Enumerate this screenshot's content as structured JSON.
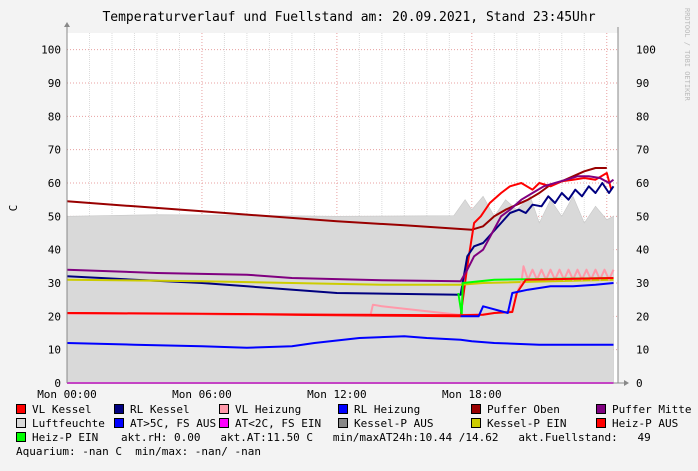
{
  "chart_data": {
    "type": "line",
    "title": "Temperaturverlauf und Fuellstand am: 20.09.2021, Stand 23:45Uhr",
    "ylabel": "C",
    "watermark": "RRDTOOL / TOBI OETIKER",
    "ylim": [
      0,
      105
    ],
    "xlim_hours": [
      0,
      24.5
    ],
    "y_ticks": [
      "0",
      "10",
      "20",
      "30",
      "40",
      "50",
      "60",
      "70",
      "80",
      "90",
      "100"
    ],
    "x_ticks": [
      {
        "label": "Mon 00:00",
        "hour": 0
      },
      {
        "label": "Mon 06:00",
        "hour": 6
      },
      {
        "label": "Mon 12:00",
        "hour": 12
      },
      {
        "label": "Mon 18:00",
        "hour": 18
      }
    ],
    "grid": true,
    "series": [
      {
        "name": "Luftfeuchte",
        "color": "#d9d9d9",
        "kind": "area",
        "points": [
          [
            0,
            50
          ],
          [
            4,
            50.5
          ],
          [
            8,
            50.3
          ],
          [
            12,
            50
          ],
          [
            17.2,
            50.2
          ],
          [
            17.7,
            55
          ],
          [
            18,
            52
          ],
          [
            18.5,
            56
          ],
          [
            19,
            50
          ],
          [
            19.5,
            55
          ],
          [
            20,
            52
          ],
          [
            20.6,
            56
          ],
          [
            21,
            48
          ],
          [
            21.5,
            55
          ],
          [
            22,
            50
          ],
          [
            22.5,
            56
          ],
          [
            23,
            48
          ],
          [
            23.5,
            53
          ],
          [
            24,
            49
          ],
          [
            24.3,
            50
          ]
        ]
      },
      {
        "name": "Puffer Oben",
        "color": "#990000",
        "points": [
          [
            0,
            54.5
          ],
          [
            3,
            53
          ],
          [
            6,
            51.5
          ],
          [
            9,
            50
          ],
          [
            12,
            48.5
          ],
          [
            15,
            47.3
          ],
          [
            18,
            46
          ],
          [
            18.5,
            47
          ],
          [
            19,
            50
          ],
          [
            19.5,
            52
          ],
          [
            20,
            53.5
          ],
          [
            20.5,
            55
          ],
          [
            21,
            57
          ],
          [
            21.5,
            59.5
          ],
          [
            22,
            60.5
          ],
          [
            22.5,
            62
          ],
          [
            23,
            63.5
          ],
          [
            23.5,
            64.5
          ],
          [
            24,
            64.5
          ]
        ]
      },
      {
        "name": "VL Kessel",
        "color": "#ff0000",
        "points": [
          [
            0,
            21
          ],
          [
            6,
            20.7
          ],
          [
            12,
            20.3
          ],
          [
            17.5,
            20
          ],
          [
            17.8,
            35
          ],
          [
            18.1,
            48
          ],
          [
            18.4,
            50
          ],
          [
            18.8,
            54
          ],
          [
            19.3,
            57
          ],
          [
            19.7,
            59
          ],
          [
            20.2,
            60
          ],
          [
            20.7,
            58
          ],
          [
            21,
            60
          ],
          [
            21.5,
            59
          ],
          [
            22,
            60.5
          ],
          [
            22.5,
            61
          ],
          [
            23,
            61.5
          ],
          [
            23.5,
            61
          ],
          [
            24,
            63
          ],
          [
            24.2,
            58
          ]
        ]
      },
      {
        "name": "RL Kessel",
        "color": "#000080",
        "points": [
          [
            0,
            32
          ],
          [
            3,
            31
          ],
          [
            6,
            30
          ],
          [
            8,
            29
          ],
          [
            12,
            27
          ],
          [
            17.5,
            26.5
          ],
          [
            17.8,
            38
          ],
          [
            18.1,
            41
          ],
          [
            18.5,
            42
          ],
          [
            18.9,
            45
          ],
          [
            19.3,
            48
          ],
          [
            19.7,
            51
          ],
          [
            20.1,
            52
          ],
          [
            20.4,
            51
          ],
          [
            20.7,
            53.5
          ],
          [
            21.1,
            53
          ],
          [
            21.4,
            56
          ],
          [
            21.7,
            54
          ],
          [
            22,
            57
          ],
          [
            22.3,
            55
          ],
          [
            22.6,
            58
          ],
          [
            22.9,
            56
          ],
          [
            23.2,
            59
          ],
          [
            23.5,
            57
          ],
          [
            23.8,
            60
          ],
          [
            24.1,
            57
          ],
          [
            24.3,
            59
          ]
        ]
      },
      {
        "name": "Puffer Mitte",
        "color": "#800080",
        "points": [
          [
            0,
            34
          ],
          [
            4,
            33
          ],
          [
            8,
            32.5
          ],
          [
            10,
            31.5
          ],
          [
            14,
            30.8
          ],
          [
            17.5,
            30.5
          ],
          [
            17.8,
            34
          ],
          [
            18.1,
            38
          ],
          [
            18.5,
            40
          ],
          [
            18.9,
            45
          ],
          [
            19.3,
            50
          ],
          [
            19.7,
            52
          ],
          [
            20.2,
            55
          ],
          [
            20.7,
            57
          ],
          [
            21.2,
            59
          ],
          [
            21.7,
            60
          ],
          [
            22.2,
            61
          ],
          [
            22.7,
            62
          ],
          [
            23.2,
            62
          ],
          [
            23.7,
            61.5
          ],
          [
            24.1,
            60
          ],
          [
            24.3,
            61
          ]
        ]
      },
      {
        "name": "Kessel-P EIN",
        "color": "#cccc00",
        "points": [
          [
            0,
            31
          ],
          [
            6,
            30.5
          ],
          [
            10,
            30
          ],
          [
            14,
            29.5
          ],
          [
            17.5,
            29.5
          ],
          [
            18.5,
            30
          ],
          [
            24.3,
            31
          ]
        ]
      },
      {
        "name": "VL Heizung",
        "color": "#ff99aa",
        "points": [
          [
            0,
            20.8
          ],
          [
            13.5,
            20.5
          ],
          [
            13.6,
            23.5
          ],
          [
            14,
            23
          ],
          [
            17.5,
            20.4
          ],
          [
            18.5,
            20.6
          ],
          [
            19,
            21
          ],
          [
            19.8,
            21.5
          ],
          [
            20,
            27
          ],
          [
            20.2,
            30
          ],
          [
            20.3,
            35
          ],
          [
            20.5,
            31
          ],
          [
            20.7,
            34
          ],
          [
            20.9,
            31
          ],
          [
            21.1,
            34
          ],
          [
            21.3,
            31
          ],
          [
            21.5,
            34
          ],
          [
            21.7,
            31
          ],
          [
            21.9,
            34
          ],
          [
            22.1,
            31
          ],
          [
            22.3,
            34
          ],
          [
            22.5,
            31
          ],
          [
            22.7,
            34
          ],
          [
            22.9,
            31
          ],
          [
            23.1,
            34
          ],
          [
            23.3,
            31
          ],
          [
            23.5,
            34
          ],
          [
            23.7,
            31
          ],
          [
            23.9,
            34
          ],
          [
            24.1,
            31
          ],
          [
            24.3,
            34
          ]
        ]
      },
      {
        "name": "RL Heizung",
        "color": "#0000ff",
        "points": [
          [
            0,
            12
          ],
          [
            3,
            11.5
          ],
          [
            6,
            11
          ],
          [
            8,
            10.6
          ],
          [
            10,
            11
          ],
          [
            11,
            12
          ],
          [
            13,
            13.5
          ],
          [
            15,
            14
          ],
          [
            16,
            13.5
          ],
          [
            17.5,
            13
          ],
          [
            18,
            12.5
          ],
          [
            19,
            12
          ],
          [
            21,
            11.5
          ],
          [
            24.3,
            11.5
          ]
        ]
      },
      {
        "name": "Heiz-P EIN",
        "color": "#00ff00",
        "points": [
          [
            17.4,
            27
          ],
          [
            17.55,
            20.5
          ],
          [
            17.6,
            30
          ],
          [
            19,
            31
          ],
          [
            24.3,
            31.5
          ]
        ]
      },
      {
        "name": "Heiz-P AUS",
        "color": "#ff0000",
        "points": [
          [
            0,
            21
          ],
          [
            6,
            20.8
          ],
          [
            12,
            20.5
          ],
          [
            17.4,
            20.3
          ],
          [
            18.5,
            20.5
          ],
          [
            19,
            21
          ],
          [
            19.8,
            21.3
          ],
          [
            20,
            27
          ],
          [
            20.4,
            31
          ],
          [
            24.3,
            31.5
          ]
        ]
      },
      {
        "name": "Kessel-P AUS",
        "color": "#888888",
        "points": [
          [
            0,
            0
          ],
          [
            24.3,
            0
          ]
        ]
      },
      {
        "name": "AT<2C, FS EIN",
        "color": "#ff00ff",
        "points": [
          [
            0,
            0
          ],
          [
            24.3,
            0
          ]
        ]
      },
      {
        "name": "AT>5C, FS AUS",
        "color": "#0000ff",
        "points": [
          [
            17.5,
            20
          ],
          [
            18.3,
            20
          ],
          [
            18.5,
            23
          ],
          [
            19.6,
            21
          ],
          [
            19.8,
            27
          ],
          [
            20.5,
            28
          ],
          [
            21.5,
            29
          ],
          [
            22.5,
            29
          ],
          [
            23.5,
            29.5
          ],
          [
            24.3,
            30
          ]
        ]
      }
    ]
  },
  "legend": {
    "rows": [
      [
        {
          "label": "VL Kessel",
          "color": "#ff0000"
        },
        {
          "label": "RL Kessel",
          "color": "#000080"
        },
        {
          "label": "VL Heizung",
          "color": "#ff99aa"
        },
        {
          "label": "RL Heizung",
          "color": "#0000ff"
        },
        {
          "label": "Puffer Oben",
          "color": "#990000"
        },
        {
          "label": "Puffer Mitte",
          "color": "#800080"
        }
      ],
      [
        {
          "label": "Luftfeuchte",
          "color": "#d9d9d9"
        },
        {
          "label": "AT>5C, FS AUS",
          "color": "#0000ff"
        },
        {
          "label": "AT<2C, FS EIN",
          "color": "#ff00ff"
        },
        {
          "label": "Kessel-P AUS",
          "color": "#888888"
        },
        {
          "label": "Kessel-P EIN",
          "color": "#cccc00"
        },
        {
          "label": "Heiz-P AUS",
          "color": "#ff0000"
        }
      ]
    ],
    "row3_item": {
      "label": "Heiz-P EIN",
      "color": "#00ff00"
    },
    "row3_text": "akt.rH: 0.00   akt.AT:11.50 C   min/maxAT24h:10.44 /14.62   akt.Fuellstand:   49",
    "row4_text": "Aquarium: -nan C  min/max: -nan/ -nan"
  }
}
